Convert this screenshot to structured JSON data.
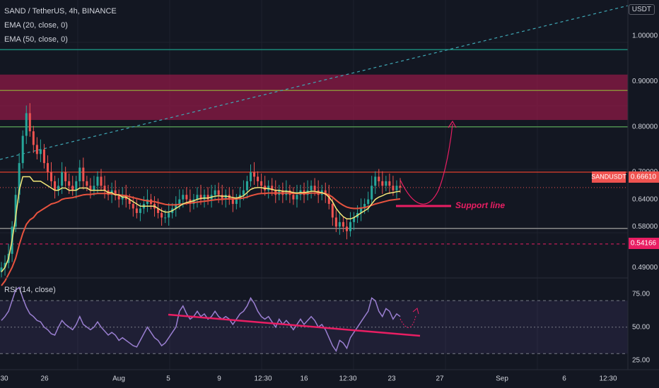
{
  "header": {
    "symbol_line": "SAND / TetherUS, 4h, BINANCE",
    "ema1": "EMA (20, close, 0)",
    "ema2": "EMA (50, close, 0)",
    "currency": "USDT",
    "rsi_label": "RSI (14, close)"
  },
  "colors": {
    "background": "#131722",
    "up": "#26a69a",
    "down": "#ef5350",
    "ema20": "#f5e97a",
    "ema50": "#e8533f",
    "rsi": "#9a7fd1",
    "pink": "#e91e63",
    "zone": "#8e1a45"
  },
  "chart_data": [
    {
      "type": "candlestick",
      "ylim": [
        0.47,
        1.07
      ],
      "y_ticks": [
        "1.00000",
        "0.90000",
        "0.80000",
        "0.70000",
        "0.64000",
        "0.58000",
        "0.49000"
      ],
      "x_ticks": [
        "30",
        "26",
        "Aug",
        "5",
        "9",
        "12:30",
        "16",
        "12:30",
        "23",
        "27",
        "Sep",
        "6",
        "12:30"
      ],
      "last_price_label": "SANDUSDT",
      "last_price": "0.66610",
      "dashed_level": "0.54166",
      "annotation": "Support line",
      "levels": [
        0.97,
        0.88,
        0.8,
        0.7,
        0.576
      ],
      "resistance_zone": [
        0.815,
        0.915
      ],
      "close": [
        0.49,
        0.5,
        0.52,
        0.58,
        0.65,
        0.72,
        0.78,
        0.83,
        0.79,
        0.76,
        0.74,
        0.75,
        0.72,
        0.7,
        0.68,
        0.66,
        0.67,
        0.7,
        0.68,
        0.67,
        0.66,
        0.68,
        0.71,
        0.68,
        0.67,
        0.66,
        0.67,
        0.69,
        0.67,
        0.66,
        0.65,
        0.66,
        0.65,
        0.64,
        0.65,
        0.64,
        0.63,
        0.62,
        0.61,
        0.62,
        0.63,
        0.64,
        0.63,
        0.62,
        0.61,
        0.6,
        0.6,
        0.61,
        0.62,
        0.63,
        0.64,
        0.65,
        0.64,
        0.63,
        0.64,
        0.65,
        0.64,
        0.65,
        0.64,
        0.65,
        0.66,
        0.65,
        0.64,
        0.65,
        0.64,
        0.63,
        0.64,
        0.65,
        0.66,
        0.68,
        0.7,
        0.69,
        0.68,
        0.67,
        0.66,
        0.67,
        0.66,
        0.65,
        0.66,
        0.65,
        0.66,
        0.65,
        0.64,
        0.65,
        0.66,
        0.65,
        0.66,
        0.67,
        0.66,
        0.65,
        0.66,
        0.65,
        0.63,
        0.6,
        0.58,
        0.59,
        0.58,
        0.57,
        0.59,
        0.6,
        0.61,
        0.62,
        0.63,
        0.64,
        0.67,
        0.69,
        0.68,
        0.67,
        0.68,
        0.67,
        0.66,
        0.67,
        0.666
      ],
      "ema20": [
        0.48,
        0.49,
        0.51,
        0.55,
        0.6,
        0.66,
        0.69,
        0.69,
        0.69,
        0.68,
        0.68,
        0.68,
        0.675,
        0.67,
        0.665,
        0.66,
        0.66,
        0.665,
        0.665,
        0.66,
        0.66,
        0.66,
        0.665,
        0.665,
        0.665,
        0.66,
        0.66,
        0.66,
        0.66,
        0.66,
        0.655,
        0.655,
        0.65,
        0.65,
        0.645,
        0.645,
        0.64,
        0.635,
        0.63,
        0.625,
        0.625,
        0.625,
        0.625,
        0.625,
        0.62,
        0.615,
        0.612,
        0.612,
        0.615,
        0.62,
        0.625,
        0.63,
        0.633,
        0.635,
        0.637,
        0.64,
        0.642,
        0.643,
        0.643,
        0.645,
        0.647,
        0.648,
        0.647,
        0.647,
        0.646,
        0.644,
        0.643,
        0.645,
        0.648,
        0.655,
        0.662,
        0.665,
        0.666,
        0.666,
        0.664,
        0.664,
        0.662,
        0.66,
        0.66,
        0.658,
        0.658,
        0.657,
        0.655,
        0.654,
        0.655,
        0.655,
        0.656,
        0.658,
        0.658,
        0.656,
        0.655,
        0.652,
        0.645,
        0.635,
        0.62,
        0.61,
        0.602,
        0.597,
        0.597,
        0.6,
        0.605,
        0.61,
        0.615,
        0.62,
        0.63,
        0.64,
        0.645,
        0.648,
        0.652,
        0.654,
        0.655,
        0.657,
        0.658
      ],
      "ema50": [
        0.45,
        0.46,
        0.475,
        0.49,
        0.51,
        0.54,
        0.565,
        0.585,
        0.595,
        0.6,
        0.61,
        0.615,
        0.62,
        0.625,
        0.63,
        0.632,
        0.635,
        0.64,
        0.642,
        0.643,
        0.644,
        0.646,
        0.648,
        0.65,
        0.651,
        0.651,
        0.652,
        0.653,
        0.653,
        0.653,
        0.653,
        0.652,
        0.651,
        0.65,
        0.649,
        0.648,
        0.646,
        0.644,
        0.642,
        0.64,
        0.638,
        0.637,
        0.636,
        0.635,
        0.633,
        0.631,
        0.629,
        0.628,
        0.628,
        0.628,
        0.629,
        0.63,
        0.631,
        0.632,
        0.633,
        0.634,
        0.635,
        0.636,
        0.637,
        0.638,
        0.639,
        0.64,
        0.64,
        0.641,
        0.641,
        0.641,
        0.641,
        0.642,
        0.643,
        0.645,
        0.648,
        0.65,
        0.652,
        0.653,
        0.653,
        0.654,
        0.654,
        0.654,
        0.654,
        0.654,
        0.654,
        0.654,
        0.653,
        0.653,
        0.653,
        0.653,
        0.653,
        0.654,
        0.654,
        0.654,
        0.654,
        0.653,
        0.65,
        0.645,
        0.638,
        0.632,
        0.627,
        0.623,
        0.621,
        0.62,
        0.62,
        0.621,
        0.622,
        0.624,
        0.627,
        0.63,
        0.632,
        0.634,
        0.636,
        0.638,
        0.639,
        0.64,
        0.641
      ]
    },
    {
      "type": "line",
      "name": "RSI (14, close)",
      "ylim": [
        20,
        85
      ],
      "y_ticks": [
        "75.00",
        "50.00",
        "25.00"
      ],
      "bands": [
        70,
        30
      ],
      "values": [
        55,
        58,
        62,
        70,
        78,
        80,
        72,
        65,
        60,
        58,
        55,
        54,
        50,
        48,
        45,
        44,
        50,
        55,
        52,
        50,
        48,
        52,
        58,
        52,
        50,
        48,
        50,
        54,
        50,
        47,
        44,
        46,
        44,
        40,
        42,
        40,
        38,
        36,
        35,
        40,
        45,
        50,
        46,
        42,
        40,
        36,
        38,
        42,
        46,
        50,
        62,
        66,
        60,
        56,
        58,
        62,
        58,
        60,
        56,
        58,
        62,
        58,
        56,
        58,
        56,
        52,
        56,
        60,
        62,
        66,
        72,
        68,
        62,
        58,
        56,
        58,
        54,
        50,
        56,
        52,
        55,
        52,
        48,
        52,
        56,
        52,
        55,
        58,
        55,
        50,
        52,
        48,
        42,
        36,
        32,
        40,
        38,
        34,
        42,
        46,
        50,
        54,
        58,
        62,
        72,
        70,
        62,
        58,
        64,
        62,
        56,
        60,
        58
      ]
    }
  ]
}
